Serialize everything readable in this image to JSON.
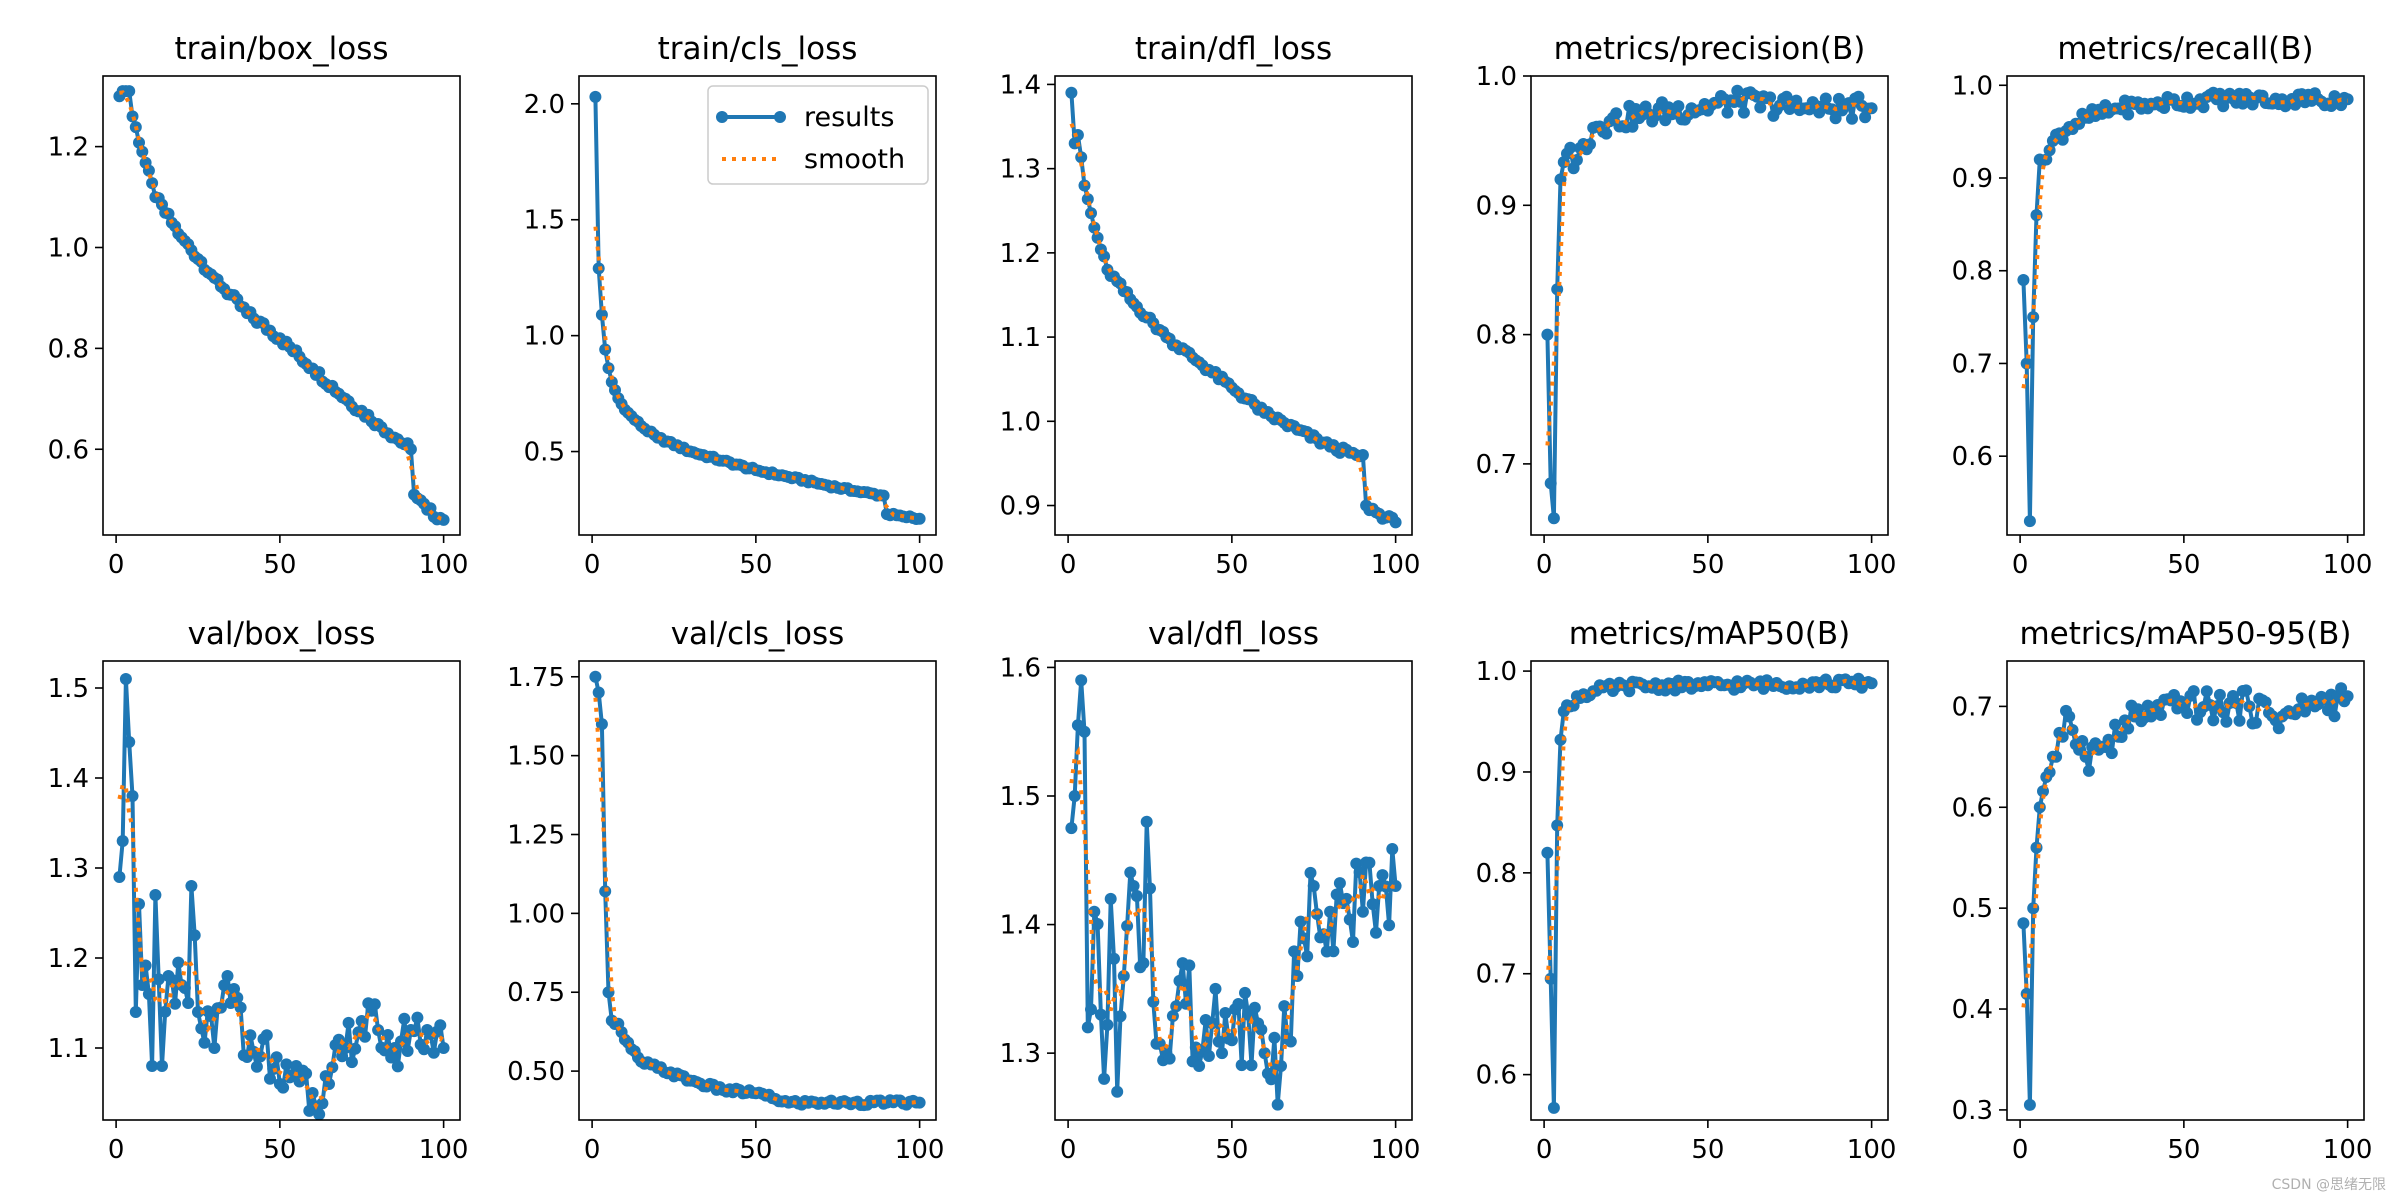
{
  "figure": {
    "watermark": "CSDN @思绪无限",
    "legend": {
      "series_label": "results",
      "smooth_label": "smooth"
    },
    "colors": {
      "results": "#1f77b4",
      "smooth": "#ff7f0e",
      "axes": "#000000"
    }
  },
  "chart_data": [
    {
      "type": "line",
      "title": "train/box_loss",
      "xlim": [
        -4,
        105
      ],
      "ylim": [
        0.43,
        1.34
      ],
      "xticks": [
        0,
        50,
        100
      ],
      "yticks": [
        0.6,
        0.8,
        1.0,
        1.2
      ],
      "yfmt": 1,
      "legend": false,
      "keypoints": [
        [
          1,
          1.3
        ],
        [
          2,
          1.31
        ],
        [
          3,
          1.31
        ],
        [
          4,
          1.31
        ],
        [
          5,
          1.26
        ],
        [
          8,
          1.19
        ],
        [
          12,
          1.1
        ],
        [
          20,
          1.02
        ],
        [
          30,
          0.94
        ],
        [
          40,
          0.87
        ],
        [
          50,
          0.82
        ],
        [
          60,
          0.76
        ],
        [
          70,
          0.7
        ],
        [
          80,
          0.65
        ],
        [
          88,
          0.61
        ],
        [
          90,
          0.6
        ],
        [
          91,
          0.51
        ],
        [
          95,
          0.48
        ],
        [
          100,
          0.46
        ]
      ],
      "noise": 0.008
    },
    {
      "type": "line",
      "title": "train/cls_loss",
      "xlim": [
        -4,
        105
      ],
      "ylim": [
        0.14,
        2.12
      ],
      "xticks": [
        0,
        50,
        100
      ],
      "yticks": [
        0.5,
        1.0,
        1.5,
        2.0
      ],
      "yfmt": 1,
      "legend": true,
      "keypoints": [
        [
          1,
          2.03
        ],
        [
          2,
          1.29
        ],
        [
          3,
          1.09
        ],
        [
          4,
          0.94
        ],
        [
          5,
          0.86
        ],
        [
          6,
          0.8
        ],
        [
          8,
          0.73
        ],
        [
          10,
          0.68
        ],
        [
          15,
          0.61
        ],
        [
          20,
          0.56
        ],
        [
          30,
          0.5
        ],
        [
          40,
          0.46
        ],
        [
          50,
          0.42
        ],
        [
          60,
          0.39
        ],
        [
          70,
          0.36
        ],
        [
          80,
          0.33
        ],
        [
          89,
          0.31
        ],
        [
          90,
          0.23
        ],
        [
          95,
          0.22
        ],
        [
          100,
          0.21
        ]
      ],
      "noise": 0.006
    },
    {
      "type": "line",
      "title": "train/dfl_loss",
      "xlim": [
        -4,
        105
      ],
      "ylim": [
        0.865,
        1.41
      ],
      "xticks": [
        0,
        50,
        100
      ],
      "yticks": [
        0.9,
        1.0,
        1.1,
        1.2,
        1.3,
        1.4
      ],
      "yfmt": 1,
      "legend": false,
      "keypoints": [
        [
          1,
          1.39
        ],
        [
          2,
          1.33
        ],
        [
          3,
          1.34
        ],
        [
          5,
          1.28
        ],
        [
          8,
          1.23
        ],
        [
          12,
          1.18
        ],
        [
          20,
          1.14
        ],
        [
          30,
          1.1
        ],
        [
          40,
          1.07
        ],
        [
          50,
          1.04
        ],
        [
          60,
          1.01
        ],
        [
          70,
          0.99
        ],
        [
          80,
          0.97
        ],
        [
          88,
          0.96
        ],
        [
          90,
          0.96
        ],
        [
          91,
          0.9
        ],
        [
          95,
          0.89
        ],
        [
          100,
          0.88
        ]
      ],
      "noise": 0.004
    },
    {
      "type": "line",
      "title": "metrics/precision(B)",
      "xlim": [
        -4,
        105
      ],
      "ylim": [
        0.645,
        1.0
      ],
      "xticks": [
        0,
        50,
        100
      ],
      "yticks": [
        0.7,
        0.8,
        0.9,
        1.0
      ],
      "yfmt": 1,
      "legend": false,
      "keypoints": [
        [
          1,
          0.8
        ],
        [
          2,
          0.685
        ],
        [
          3,
          0.658
        ],
        [
          4,
          0.835
        ],
        [
          5,
          0.92
        ],
        [
          7,
          0.94
        ],
        [
          10,
          0.935
        ],
        [
          15,
          0.96
        ],
        [
          20,
          0.965
        ],
        [
          30,
          0.97
        ],
        [
          45,
          0.975
        ],
        [
          60,
          0.98
        ],
        [
          80,
          0.975
        ],
        [
          100,
          0.975
        ]
      ],
      "noise": 0.009
    },
    {
      "type": "line",
      "title": "metrics/recall(B)",
      "xlim": [
        -4,
        105
      ],
      "ylim": [
        0.515,
        1.01
      ],
      "xticks": [
        0,
        50,
        100
      ],
      "yticks": [
        0.6,
        0.7,
        0.8,
        0.9,
        1.0
      ],
      "yfmt": 1,
      "legend": false,
      "keypoints": [
        [
          1,
          0.79
        ],
        [
          2,
          0.7
        ],
        [
          3,
          0.53
        ],
        [
          4,
          0.75
        ],
        [
          5,
          0.86
        ],
        [
          6,
          0.92
        ],
        [
          8,
          0.92
        ],
        [
          10,
          0.94
        ],
        [
          15,
          0.955
        ],
        [
          20,
          0.965
        ],
        [
          30,
          0.975
        ],
        [
          40,
          0.98
        ],
        [
          60,
          0.985
        ],
        [
          80,
          0.985
        ],
        [
          100,
          0.985
        ]
      ],
      "noise": 0.008
    },
    {
      "type": "line",
      "title": "val/box_loss",
      "xlim": [
        -4,
        105
      ],
      "ylim": [
        1.02,
        1.53
      ],
      "xticks": [
        0,
        50,
        100
      ],
      "yticks": [
        1.1,
        1.2,
        1.3,
        1.4,
        1.5
      ],
      "yfmt": 1,
      "legend": false,
      "keypoints": [
        [
          1,
          1.29
        ],
        [
          2,
          1.33
        ],
        [
          3,
          1.51
        ],
        [
          4,
          1.44
        ],
        [
          5,
          1.38
        ],
        [
          6,
          1.14
        ],
        [
          7,
          1.26
        ],
        [
          8,
          1.17
        ],
        [
          10,
          1.16
        ],
        [
          11,
          1.08
        ],
        [
          12,
          1.27
        ],
        [
          14,
          1.08
        ],
        [
          16,
          1.18
        ],
        [
          20,
          1.17
        ],
        [
          22,
          1.15
        ],
        [
          23,
          1.28
        ],
        [
          25,
          1.14
        ],
        [
          30,
          1.1
        ],
        [
          34,
          1.18
        ],
        [
          40,
          1.09
        ],
        [
          45,
          1.11
        ],
        [
          50,
          1.06
        ],
        [
          55,
          1.08
        ],
        [
          60,
          1.05
        ],
        [
          65,
          1.06
        ],
        [
          70,
          1.1
        ],
        [
          75,
          1.13
        ],
        [
          80,
          1.12
        ],
        [
          85,
          1.1
        ],
        [
          90,
          1.12
        ],
        [
          95,
          1.12
        ],
        [
          100,
          1.1
        ]
      ],
      "noise": 0.028
    },
    {
      "type": "line",
      "title": "val/cls_loss",
      "xlim": [
        -4,
        105
      ],
      "ylim": [
        0.345,
        1.8
      ],
      "xticks": [
        0,
        50,
        100
      ],
      "yticks": [
        0.5,
        0.75,
        1.0,
        1.25,
        1.5,
        1.75
      ],
      "yfmt": 2,
      "legend": false,
      "keypoints": [
        [
          1,
          1.75
        ],
        [
          2,
          1.7
        ],
        [
          3,
          1.6
        ],
        [
          4,
          1.07
        ],
        [
          5,
          0.75
        ],
        [
          6,
          0.66
        ],
        [
          8,
          0.65
        ],
        [
          10,
          0.6
        ],
        [
          12,
          0.57
        ],
        [
          15,
          0.53
        ],
        [
          20,
          0.51
        ],
        [
          30,
          0.47
        ],
        [
          40,
          0.44
        ],
        [
          50,
          0.43
        ],
        [
          60,
          0.4
        ],
        [
          70,
          0.4
        ],
        [
          80,
          0.4
        ],
        [
          90,
          0.4
        ],
        [
          100,
          0.4
        ]
      ],
      "noise": 0.008
    },
    {
      "type": "line",
      "title": "val/dfl_loss",
      "xlim": [
        -4,
        105
      ],
      "ylim": [
        1.248,
        1.605
      ],
      "xticks": [
        0,
        50,
        100
      ],
      "yticks": [
        1.3,
        1.4,
        1.5,
        1.6
      ],
      "yfmt": 1,
      "legend": false,
      "keypoints": [
        [
          1,
          1.475
        ],
        [
          2,
          1.5
        ],
        [
          3,
          1.555
        ],
        [
          4,
          1.59
        ],
        [
          5,
          1.55
        ],
        [
          6,
          1.32
        ],
        [
          8,
          1.41
        ],
        [
          10,
          1.33
        ],
        [
          11,
          1.28
        ],
        [
          13,
          1.42
        ],
        [
          15,
          1.27
        ],
        [
          17,
          1.36
        ],
        [
          20,
          1.43
        ],
        [
          23,
          1.37
        ],
        [
          24,
          1.48
        ],
        [
          26,
          1.34
        ],
        [
          30,
          1.3
        ],
        [
          35,
          1.37
        ],
        [
          40,
          1.29
        ],
        [
          45,
          1.35
        ],
        [
          50,
          1.31
        ],
        [
          55,
          1.33
        ],
        [
          60,
          1.3
        ],
        [
          65,
          1.29
        ],
        [
          70,
          1.36
        ],
        [
          75,
          1.43
        ],
        [
          80,
          1.41
        ],
        [
          85,
          1.42
        ],
        [
          90,
          1.41
        ],
        [
          95,
          1.43
        ],
        [
          100,
          1.43
        ]
      ],
      "noise": 0.035
    },
    {
      "type": "line",
      "title": "metrics/mAP50(B)",
      "xlim": [
        -4,
        105
      ],
      "ylim": [
        0.555,
        1.01
      ],
      "xticks": [
        0,
        50,
        100
      ],
      "yticks": [
        0.6,
        0.7,
        0.8,
        0.9,
        1.0
      ],
      "yfmt": 1,
      "legend": false,
      "keypoints": [
        [
          1,
          0.82
        ],
        [
          2,
          0.695
        ],
        [
          3,
          0.567
        ],
        [
          4,
          0.847
        ],
        [
          5,
          0.932
        ],
        [
          6,
          0.96
        ],
        [
          8,
          0.965
        ],
        [
          10,
          0.975
        ],
        [
          15,
          0.98
        ],
        [
          25,
          0.985
        ],
        [
          50,
          0.986
        ],
        [
          100,
          0.988
        ]
      ],
      "noise": 0.005
    },
    {
      "type": "line",
      "title": "metrics/mAP50-95(B)",
      "xlim": [
        -4,
        105
      ],
      "ylim": [
        0.29,
        0.745
      ],
      "xticks": [
        0,
        50,
        100
      ],
      "yticks": [
        0.3,
        0.4,
        0.5,
        0.6,
        0.7
      ],
      "yfmt": 1,
      "legend": false,
      "keypoints": [
        [
          1,
          0.485
        ],
        [
          2,
          0.415
        ],
        [
          3,
          0.305
        ],
        [
          4,
          0.5
        ],
        [
          5,
          0.56
        ],
        [
          6,
          0.6
        ],
        [
          8,
          0.63
        ],
        [
          10,
          0.65
        ],
        [
          13,
          0.67
        ],
        [
          15,
          0.69
        ],
        [
          20,
          0.65
        ],
        [
          25,
          0.66
        ],
        [
          30,
          0.67
        ],
        [
          35,
          0.69
        ],
        [
          40,
          0.69
        ],
        [
          50,
          0.7
        ],
        [
          60,
          0.7
        ],
        [
          70,
          0.7
        ],
        [
          80,
          0.69
        ],
        [
          90,
          0.7
        ],
        [
          100,
          0.71
        ]
      ],
      "noise": 0.016
    }
  ]
}
